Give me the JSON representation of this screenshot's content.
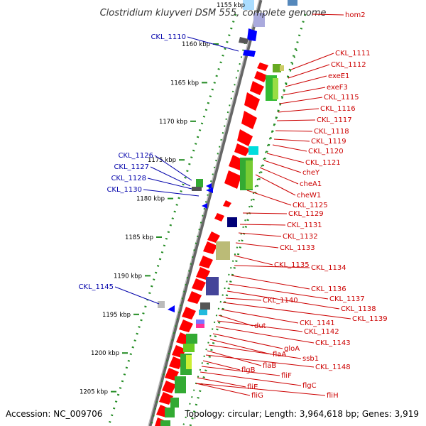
{
  "title": "Clostridium kluyveri DSM 555, complete genome",
  "footer": {
    "accession": "Accession: NC_009706",
    "topology": "Topology: circular; Length: 3,964,618 bp; Genes: 3,919"
  },
  "ticks": [
    {
      "label": "1160 kbp",
      "y": 1160
    },
    {
      "label": "1165 kbp",
      "y": 1165
    },
    {
      "label": "1170 kbp",
      "y": 1170
    },
    {
      "label": "1175 kbp",
      "y": 1175
    },
    {
      "label": "1180 kbp",
      "y": 1180
    },
    {
      "label": "1185 kbp",
      "y": 1185
    },
    {
      "label": "1190 kbp",
      "y": 1190
    },
    {
      "label": "1195 kbp",
      "y": 1195
    },
    {
      "label": "1200 kbp",
      "y": 1200
    },
    {
      "label": "1205 kbp",
      "y": 1205
    }
  ],
  "genes_right": [
    {
      "label": "hom2"
    },
    {
      "label": "CKL_1111"
    },
    {
      "label": "CKL_1112"
    },
    {
      "label": "exeE1"
    },
    {
      "label": "exeF3"
    },
    {
      "label": "CKL_1115"
    },
    {
      "label": "CKL_1116"
    },
    {
      "label": "CKL_1117"
    },
    {
      "label": "CKL_1118"
    },
    {
      "label": "CKL_1119"
    },
    {
      "label": "CKL_1120"
    },
    {
      "label": "CKL_1121"
    },
    {
      "label": "cheY"
    },
    {
      "label": "cheA1"
    },
    {
      "label": "cheW1"
    },
    {
      "label": "CKL_1125"
    },
    {
      "label": "CKL_1129"
    },
    {
      "label": "CKL_1131"
    },
    {
      "label": "CKL_1132"
    },
    {
      "label": "CKL_1133"
    },
    {
      "label": "CKL_1135"
    },
    {
      "label": "CKL_1134"
    },
    {
      "label": "CKL_1136"
    },
    {
      "label": "CKL_1137"
    },
    {
      "label": "CKL_1138"
    },
    {
      "label": "CKL_1140"
    },
    {
      "label": "CKL_1139"
    },
    {
      "label": "CKL_1141"
    },
    {
      "label": "dut"
    },
    {
      "label": "CKL_1142"
    },
    {
      "label": "CKL_1143"
    },
    {
      "label": "gloA"
    },
    {
      "label": "flaA"
    },
    {
      "label": "ssb1"
    },
    {
      "label": "flaB"
    },
    {
      "label": "CKL_1148"
    },
    {
      "label": "flgB"
    },
    {
      "label": "fliF"
    },
    {
      "label": "flgC"
    },
    {
      "label": "fliE"
    },
    {
      "label": "fliG"
    },
    {
      "label": "fliH"
    }
  ],
  "genes_left": [
    {
      "label": "CKL_1110"
    },
    {
      "label": "CKL_1126"
    },
    {
      "label": "CKL_1127"
    },
    {
      "label": "CKL_1128"
    },
    {
      "label": "CKL_1130"
    },
    {
      "label": "CKL_1145"
    }
  ],
  "partial_top_label": "1155 kbp",
  "colors": {
    "forward": "#ff0000",
    "reverse": "#0000ff",
    "backbone": "#888888",
    "dots": "#228b22",
    "label_right": "#cc0000",
    "label_left": "#0000aa"
  }
}
